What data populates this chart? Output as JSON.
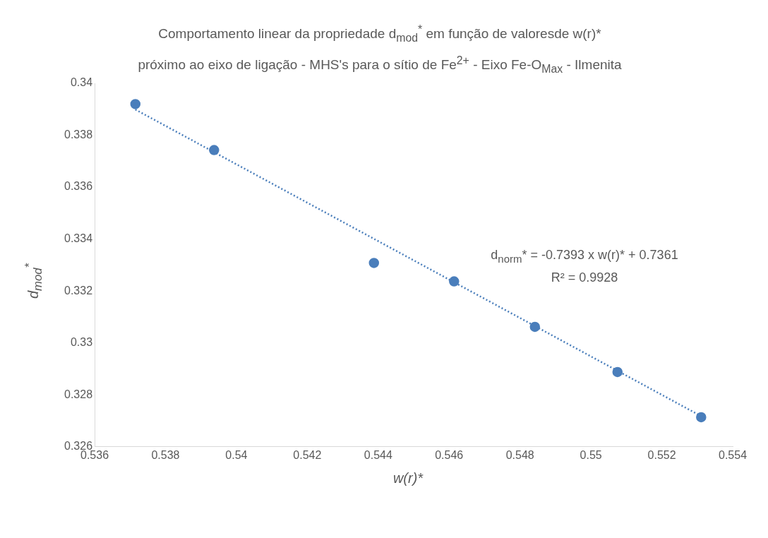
{
  "chart_data": {
    "type": "scatter",
    "title": "Comportamento linear da propriedade d$_{mod}$$^{*}$ em função de valoresde w(r)*",
    "subtitle": "próximo ao eixo de ligação - MHS's para o sítio de Fe$^{2+}$ - Eixo  Fe-O$_{Max}$ - Ilmenita",
    "xlabel": "w(r)*",
    "ylabel": "d$_{mod}$$^{*}$",
    "annotations": [
      "d$_{norm}$* = -0.7393 x w(r)* + 0.7361",
      "R² = 0.9928"
    ],
    "series": [
      {
        "color": "#4a7ebb",
        "marker": "circle",
        "x": [
          0.53715,
          0.53937,
          0.54388,
          0.54614,
          0.54842,
          0.55075,
          0.55311
        ],
        "values": [
          0.3392,
          0.33743,
          0.33308,
          0.33237,
          0.33062,
          0.32888,
          0.32714
        ]
      },
      {
        "type": "line",
        "color": "#4a7ebb",
        "marker": "none",
        "line_style": "dotted",
        "x": [
          0.53715,
          0.55311
        ],
        "values": [
          0.33899,
          0.32718
        ]
      }
    ],
    "xlim": [
      0.536,
      0.554
    ],
    "xticks": [
      0.536,
      0.538,
      0.54,
      0.542,
      0.544,
      0.546,
      0.548,
      0.55,
      0.552,
      0.554
    ],
    "ylim": [
      0.326,
      0.34
    ],
    "yticks": [
      0.326,
      0.328,
      0.33,
      0.332,
      0.334,
      0.336,
      0.338,
      0.34
    ],
    "grid": false,
    "legend": false
  }
}
